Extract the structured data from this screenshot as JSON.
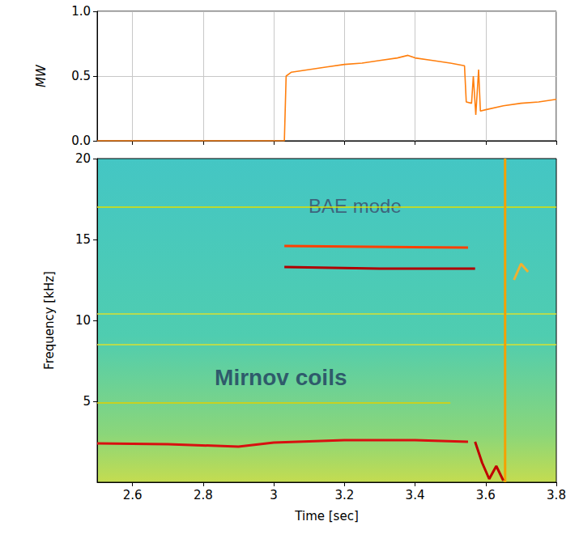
{
  "chart_data": [
    {
      "type": "line",
      "y_label": "MW",
      "x": [
        2.5,
        3.03,
        3.035,
        3.05,
        3.1,
        3.15,
        3.2,
        3.25,
        3.3,
        3.35,
        3.38,
        3.4,
        3.45,
        3.5,
        3.54,
        3.545,
        3.56,
        3.565,
        3.572,
        3.58,
        3.585,
        3.6,
        3.65,
        3.7,
        3.75,
        3.8
      ],
      "values": [
        0,
        0,
        0.5,
        0.53,
        0.55,
        0.57,
        0.59,
        0.6,
        0.62,
        0.64,
        0.66,
        0.64,
        0.62,
        0.6,
        0.58,
        0.3,
        0.29,
        0.5,
        0.2,
        0.55,
        0.23,
        0.24,
        0.27,
        0.29,
        0.3,
        0.32
      ],
      "color": "#ff7f0e",
      "xlim": [
        2.5,
        3.8
      ],
      "xticks": [
        2.6,
        2.8,
        3,
        3.2,
        3.4,
        3.6,
        3.8
      ],
      "ylim": [
        0,
        1
      ],
      "yticks": [
        {
          "value": 0,
          "label": "0.0"
        },
        {
          "value": 0.5,
          "label": "0.5"
        },
        {
          "value": 1,
          "label": "1.0"
        }
      ],
      "grid": true,
      "tick_labels": "y"
    },
    {
      "type": "line",
      "x_label": "Time [sec]",
      "y_label": "Frequency [kHz]",
      "series": [
        {
          "color": "#e0e000",
          "x": [
            2.5,
            3.8
          ],
          "values": [
            17.0,
            17.0
          ]
        },
        {
          "color": "#d8e030",
          "x": [
            2.5,
            3.8
          ],
          "values": [
            10.4,
            10.4
          ]
        },
        {
          "color": "#d8e030",
          "x": [
            2.5,
            3.8
          ],
          "values": [
            8.5,
            8.5
          ]
        },
        {
          "color": "#e0d000",
          "x": [
            2.5,
            3.5
          ],
          "values": [
            4.9,
            4.9
          ]
        },
        {
          "color": "#d81010",
          "x": [
            2.5,
            2.7,
            2.9,
            3.0,
            3.2,
            3.4,
            3.55
          ],
          "values": [
            2.4,
            2.35,
            2.2,
            2.45,
            2.6,
            2.6,
            2.5
          ]
        },
        {
          "color": "#b00000",
          "x": [
            3.03,
            3.3,
            3.57
          ],
          "values": [
            13.3,
            13.2,
            13.2
          ]
        },
        {
          "color": "#ff4000",
          "x": [
            3.03,
            3.55
          ],
          "values": [
            14.6,
            14.5
          ]
        },
        {
          "color": "#f5a000",
          "x": [
            3.655,
            3.655
          ],
          "values": [
            0,
            20
          ]
        },
        {
          "color": "#c00000",
          "x": [
            3.57,
            3.59,
            3.61,
            3.63,
            3.65
          ],
          "values": [
            2.5,
            1.2,
            0.2,
            1.0,
            0.1
          ]
        },
        {
          "color": "#f0b030",
          "x": [
            3.68,
            3.7,
            3.72
          ],
          "values": [
            12.5,
            13.5,
            13.0
          ]
        }
      ],
      "annotations": [
        {
          "text": "BAE mode",
          "x": 3.23,
          "y": 17.1
        },
        {
          "text": "Mirnov coils",
          "x": 3.02,
          "y": 6.5
        }
      ],
      "xlim": [
        2.5,
        3.8
      ],
      "xticks": [
        2.6,
        2.8,
        3,
        3.2,
        3.4,
        3.6,
        3.8
      ],
      "ylim": [
        0,
        20
      ],
      "yticks": [
        5,
        10,
        15,
        20
      ],
      "grid": false
    }
  ]
}
